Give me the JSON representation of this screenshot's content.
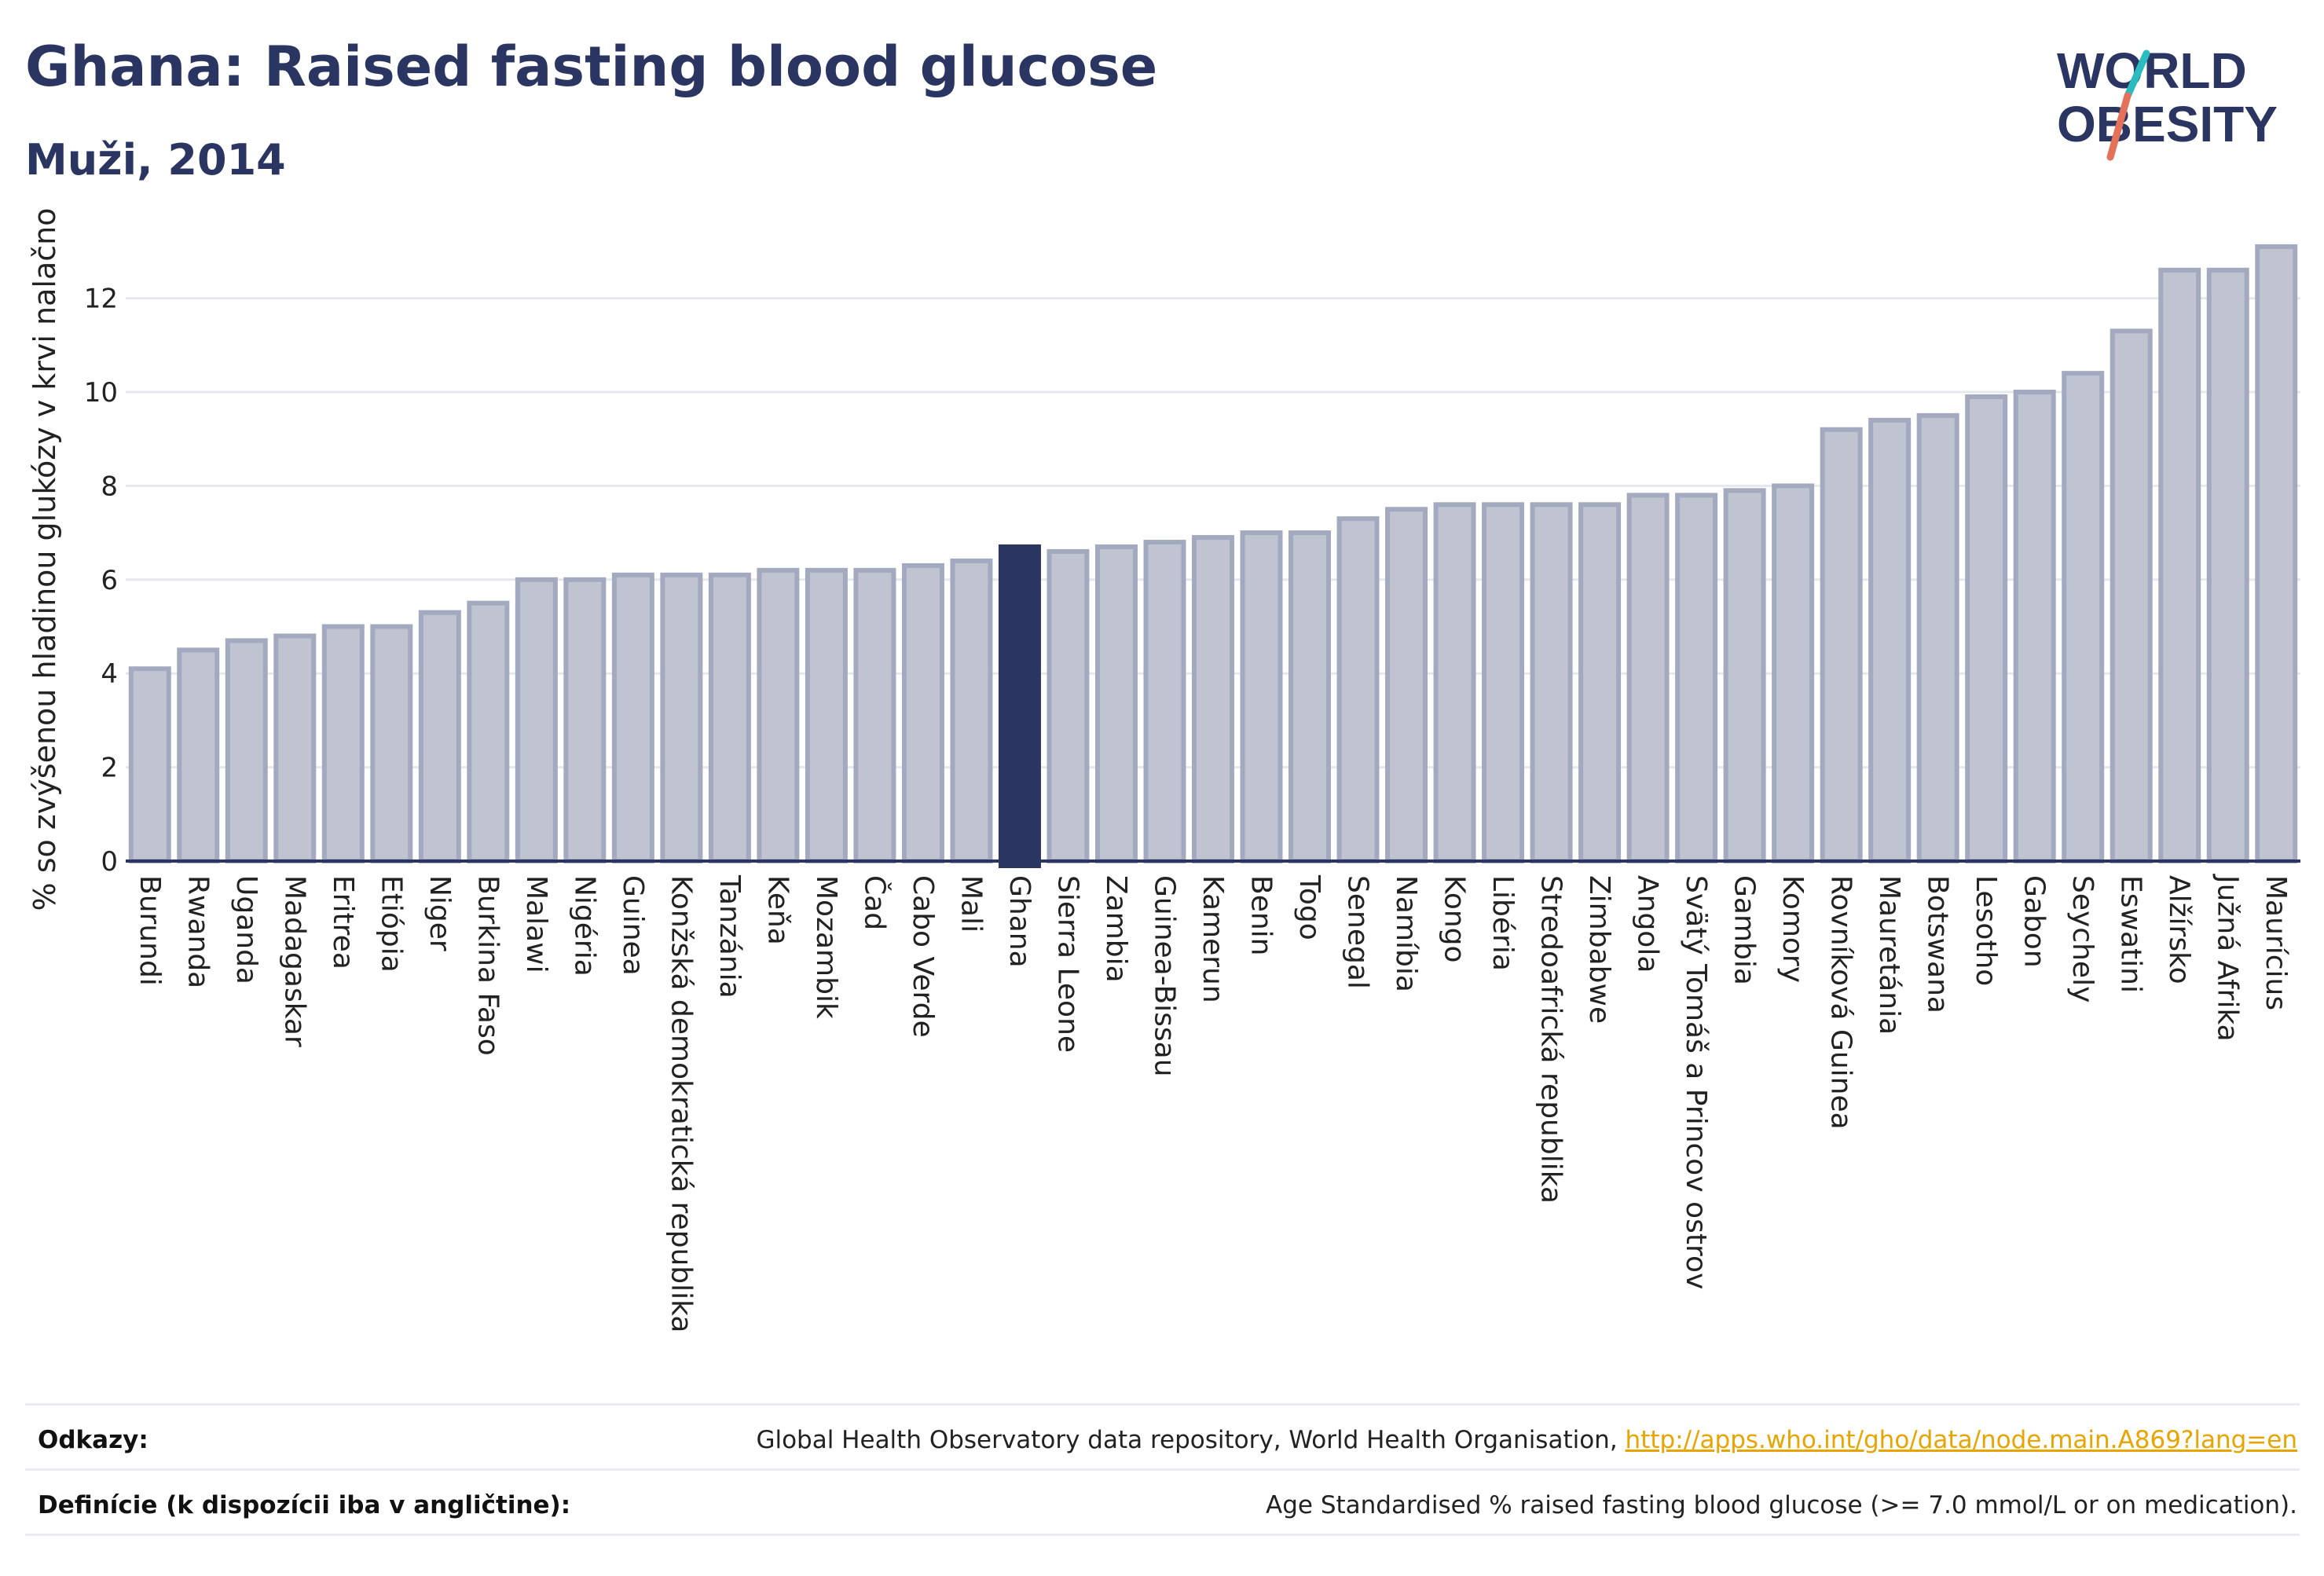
{
  "header": {
    "title": "Ghana: Raised fasting blood glucose",
    "subtitle": "Muži, 2014"
  },
  "logo": {
    "line1": "WORLD",
    "line2": "OBESITY",
    "brand_color": "#2a3561",
    "slash_color_top": "#2bbcc0",
    "slash_color_bottom": "#e4715a"
  },
  "chart_data": {
    "type": "bar",
    "title": "Ghana: Raised fasting blood glucose",
    "subtitle": "Muži, 2014",
    "xlabel": "",
    "ylabel": "% so zvýšenou hladinou glukózy v krvi nalačno",
    "ylim": [
      0,
      13.2
    ],
    "yticks": [
      0,
      2,
      4,
      6,
      8,
      10,
      12
    ],
    "grid": true,
    "highlight": "Ghana",
    "bar_color": "#c0c4d1",
    "bar_edge_color": "#a3a9be",
    "highlight_color": "#2a3561",
    "categories": [
      "Burundi",
      "Rwanda",
      "Uganda",
      "Madagaskar",
      "Eritrea",
      "Etiópia",
      "Niger",
      "Burkina Faso",
      "Malawi",
      "Nigéria",
      "Guinea",
      "Konžská demokratická republika",
      "Tanzánia",
      "Keňa",
      "Mozambik",
      "Čad",
      "Cabo Verde",
      "Mali",
      "Ghana",
      "Sierra Leone",
      "Zambia",
      "Guinea-Bissau",
      "Kamerun",
      "Benin",
      "Togo",
      "Senegal",
      "Namíbia",
      "Kongo",
      "Libéria",
      "Stredoafrická republika",
      "Zimbabwe",
      "Angola",
      "Svätý Tomáš a Princov ostrov",
      "Gambia",
      "Komory",
      "Rovníková Guinea",
      "Mauretánia",
      "Botswana",
      "Lesotho",
      "Gabon",
      "Seychely",
      "Eswatini",
      "Alžírsko",
      "Južná Afrika",
      "Maurícius"
    ],
    "values": [
      4.1,
      4.5,
      4.7,
      4.8,
      5.0,
      5.0,
      5.3,
      5.5,
      6.0,
      6.0,
      6.1,
      6.1,
      6.1,
      6.2,
      6.2,
      6.2,
      6.3,
      6.4,
      6.7,
      6.6,
      6.7,
      6.8,
      6.9,
      7.0,
      7.0,
      7.3,
      7.5,
      7.6,
      7.6,
      7.6,
      7.6,
      7.8,
      7.8,
      7.9,
      8.0,
      9.2,
      9.4,
      9.5,
      9.9,
      10.0,
      10.4,
      11.3,
      12.6,
      12.6,
      13.1
    ]
  },
  "footer": {
    "references_label": "Odkazy:",
    "references_text": "Global Health Observatory data repository, World Health Organisation, ",
    "references_link": "http://apps.who.int/gho/data/node.main.A869?lang=en",
    "definitions_label": "Definície (k dispozícii iba v angličtine):",
    "definitions_text": "Age Standardised % raised fasting blood glucose (>= 7.0 mmol/L or on medication)."
  }
}
